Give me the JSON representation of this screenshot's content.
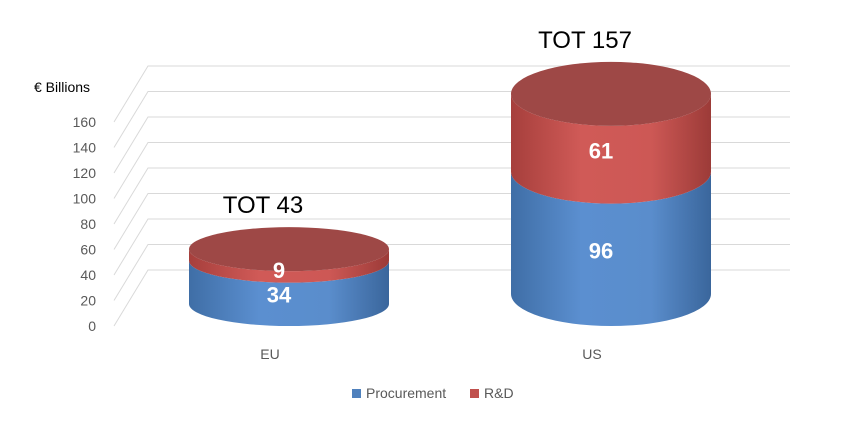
{
  "chart_data": {
    "type": "bar",
    "style": "3d-cylinder-stacked",
    "unit_label": "€ Billions",
    "categories": [
      "EU",
      "US"
    ],
    "series": [
      {
        "name": "Procurement",
        "color": "#4F81BD",
        "values": [
          34,
          96
        ]
      },
      {
        "name": "R&D",
        "color": "#C0504D",
        "values": [
          9,
          61
        ]
      }
    ],
    "totals": [
      "TOT 43",
      "TOT 157"
    ],
    "yticks": [
      0,
      20,
      40,
      60,
      80,
      100,
      120,
      140,
      160
    ],
    "ylim": [
      0,
      160
    ],
    "grid": true,
    "legend_position": "bottom"
  }
}
